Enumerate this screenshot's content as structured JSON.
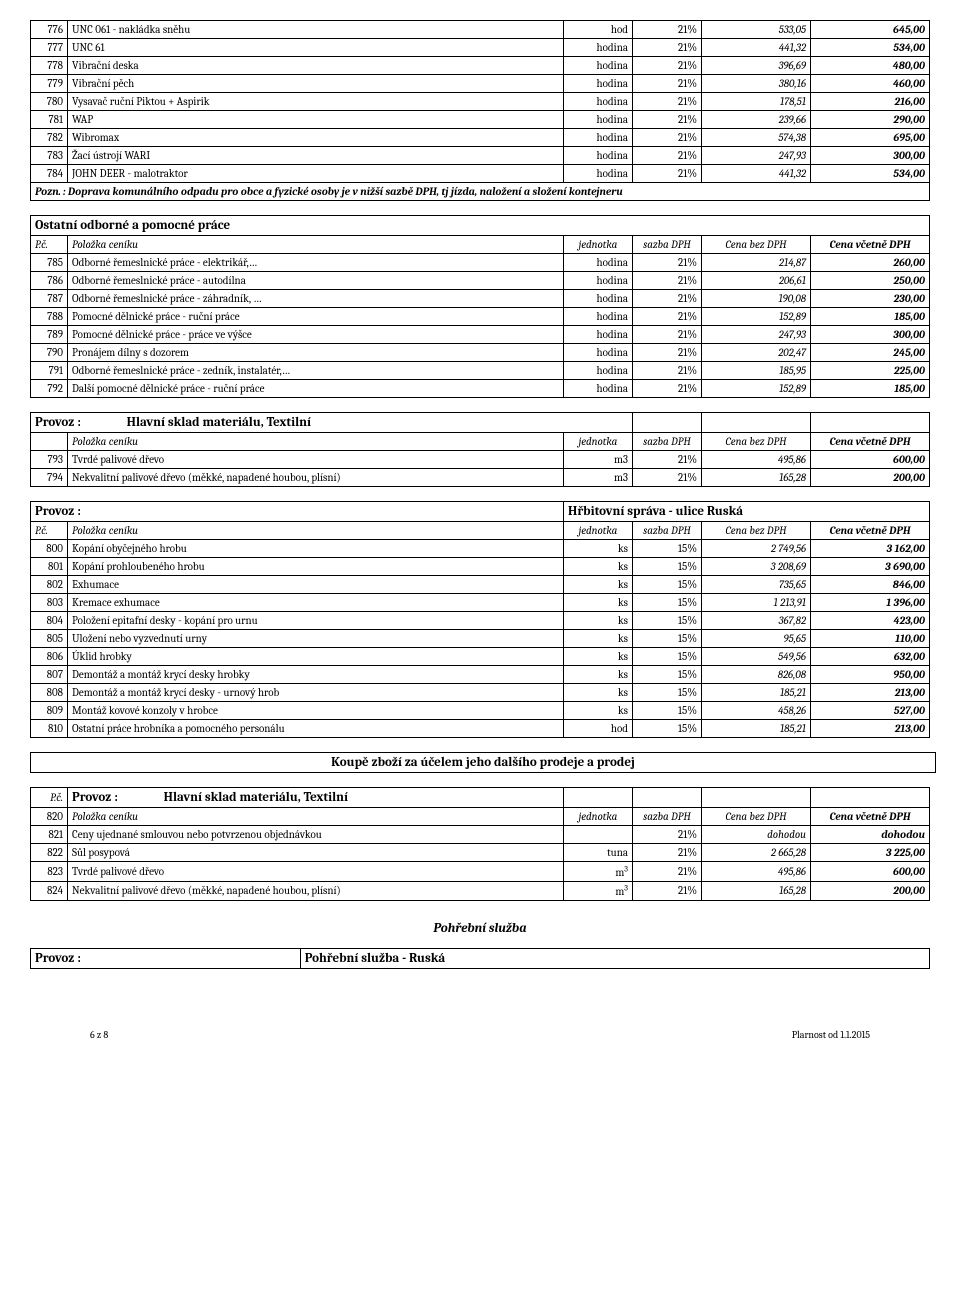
{
  "table1": {
    "rows": [
      {
        "n": "776",
        "desc": "UNC 061 - nakládka sněhu",
        "unit": "hod",
        "vat": "21%",
        "ex": "533,05",
        "inc": "645,00"
      },
      {
        "n": "777",
        "desc": "UNC 61",
        "unit": "hodina",
        "vat": "21%",
        "ex": "441,32",
        "inc": "534,00"
      },
      {
        "n": "778",
        "desc": "Vibrační deska",
        "unit": "hodina",
        "vat": "21%",
        "ex": "396,69",
        "inc": "480,00"
      },
      {
        "n": "779",
        "desc": "Vibrační pěch",
        "unit": "hodina",
        "vat": "21%",
        "ex": "380,16",
        "inc": "460,00"
      },
      {
        "n": "780",
        "desc": "Vysavač ruční Piktou + Aspirik",
        "unit": "hodina",
        "vat": "21%",
        "ex": "178,51",
        "inc": "216,00"
      },
      {
        "n": "781",
        "desc": "WAP",
        "unit": "hodina",
        "vat": "21%",
        "ex": "239,66",
        "inc": "290,00"
      },
      {
        "n": "782",
        "desc": "Wibromax",
        "unit": "hodina",
        "vat": "21%",
        "ex": "574,38",
        "inc": "695,00"
      },
      {
        "n": "783",
        "desc": "Žací ústrojí WARI",
        "unit": "hodina",
        "vat": "21%",
        "ex": "247,93",
        "inc": "300,00"
      },
      {
        "n": "784",
        "desc": "JOHN DEER - malotraktor",
        "unit": "hodina",
        "vat": "21%",
        "ex": "441,32",
        "inc": "534,00"
      }
    ],
    "note": "Pozn. : Doprava komunálního odpadu pro obce a fyzické osoby je v nižší sazbě DPH, tj jízda, naložení a složení kontejneru"
  },
  "table2": {
    "title": "Ostatní odborné a pomocné práce",
    "header": {
      "pc": "P.č.",
      "item": "Položka ceníku",
      "unit": "jednotka",
      "vat": "sazba DPH",
      "ex": "Cena bez DPH",
      "inc": "Cena včetně DPH"
    },
    "rows": [
      {
        "n": "785",
        "desc": "Odborné řemeslnické práce -  elektrikář,…",
        "unit": "hodina",
        "vat": "21%",
        "ex": "214,87",
        "inc": "260,00"
      },
      {
        "n": "786",
        "desc": "Odborné řemeslnické práce - autodílna",
        "unit": "hodina",
        "vat": "21%",
        "ex": "206,61",
        "inc": "250,00"
      },
      {
        "n": "787",
        "desc": "Odborné řemeslnické práce - záhradník, …",
        "unit": "hodina",
        "vat": "21%",
        "ex": "190,08",
        "inc": "230,00"
      },
      {
        "n": "788",
        "desc": "Pomocné dělnické práce - ruční práce",
        "unit": "hodina",
        "vat": "21%",
        "ex": "152,89",
        "inc": "185,00"
      },
      {
        "n": "789",
        "desc": "Pomocné dělnické práce - práce ve výšce",
        "unit": "hodina",
        "vat": "21%",
        "ex": "247,93",
        "inc": "300,00"
      },
      {
        "n": "790",
        "desc": "Pronájem dílny s dozorem",
        "unit": "hodina",
        "vat": "21%",
        "ex": "202,47",
        "inc": "245,00"
      },
      {
        "n": "791",
        "desc": "Odborné řemeslnické práce -  zedník, instalatér,…",
        "unit": "hodina",
        "vat": "21%",
        "ex": "185,95",
        "inc": "225,00"
      },
      {
        "n": "792",
        "desc": "Další pomocné dělnické práce - ruční práce",
        "unit": "hodina",
        "vat": "21%",
        "ex": "152,89",
        "inc": "185,00"
      }
    ]
  },
  "table3": {
    "provoz_label": "Provoz :",
    "provoz_value": "Hlavní sklad  materiálu, Textilní",
    "header": {
      "item": "Položka ceníku",
      "unit": "jednotka",
      "vat": "sazba DPH",
      "ex": "Cena bez DPH",
      "inc": "Cena včetně DPH"
    },
    "rows": [
      {
        "n": "793",
        "desc": "Tvrdé palivové dřevo",
        "unit": "m3",
        "vat": "21%",
        "ex": "495,86",
        "inc": "600,00"
      },
      {
        "n": "794",
        "desc": "Nekvalitní palivové dřevo (měkké, napadené houbou, plísní)",
        "unit": "m3",
        "vat": "21%",
        "ex": "165,28",
        "inc": "200,00"
      }
    ]
  },
  "table4": {
    "provoz_label": "Provoz :",
    "provoz_value": "Hřbitovní správa  -  ulice Ruská",
    "header": {
      "pc": "P.č.",
      "item": "Položka ceníku",
      "unit": "jednotka",
      "vat": "sazba DPH",
      "ex": "Cena bez DPH",
      "inc": "Cena včetně DPH"
    },
    "rows": [
      {
        "n": "800",
        "desc": "Kopání obyčejného hrobu",
        "unit": "ks",
        "vat": "15%",
        "ex": "2 749,56",
        "inc": "3 162,00"
      },
      {
        "n": "801",
        "desc": "Kopání prohloubeného hrobu",
        "unit": "ks",
        "vat": "15%",
        "ex": "3 208,69",
        "inc": "3 690,00"
      },
      {
        "n": "802",
        "desc": "Exhumace",
        "unit": "ks",
        "vat": "15%",
        "ex": "735,65",
        "inc": "846,00"
      },
      {
        "n": "803",
        "desc": "Kremace exhumace",
        "unit": "ks",
        "vat": "15%",
        "ex": "1 213,91",
        "inc": "1 396,00"
      },
      {
        "n": "804",
        "desc": "Položení epitafní desky - kopání pro urnu",
        "unit": "ks",
        "vat": "15%",
        "ex": "367,82",
        "inc": "423,00"
      },
      {
        "n": "805",
        "desc": "Uložení nebo vyzvednutí urny",
        "unit": "ks",
        "vat": "15%",
        "ex": "95,65",
        "inc": "110,00"
      },
      {
        "n": "806",
        "desc": "Úklid hrobky",
        "unit": "ks",
        "vat": "15%",
        "ex": "549,56",
        "inc": "632,00"
      },
      {
        "n": "807",
        "desc": "Demontáž a montáž krycí desky hrobky",
        "unit": "ks",
        "vat": "15%",
        "ex": "826,08",
        "inc": "950,00"
      },
      {
        "n": "808",
        "desc": "Demontáž a montáž krycí desky  - urnový hrob",
        "unit": "ks",
        "vat": "15%",
        "ex": "185,21",
        "inc": "213,00"
      },
      {
        "n": "809",
        "desc": "Montáž kovové konzoly v hrobce",
        "unit": "ks",
        "vat": "15%",
        "ex": "458,26",
        "inc": "527,00"
      },
      {
        "n": "810",
        "desc": "Ostatní práce hrobníka a pomocného personálu",
        "unit": "hod",
        "vat": "15%",
        "ex": "185,21",
        "inc": "213,00"
      }
    ]
  },
  "banner": "Koupě zboží za účelem jeho dalšího prodeje a prodej",
  "table5": {
    "pc": "P.č.",
    "provoz_label": "Provoz :",
    "provoz_value": "Hlavní sklad  materiálu, Textilní",
    "header": {
      "n": "820",
      "item": "Položka ceníku",
      "unit": "jednotka",
      "vat": "sazba DPH",
      "ex": "Cena bez DPH",
      "inc": "Cena včetně DPH"
    },
    "rows": [
      {
        "n": "821",
        "desc": "Ceny ujednané smlouvou nebo potvrzenou objednávkou",
        "unit": "",
        "vat": "21%",
        "ex": "dohodou",
        "inc": "dohodou"
      },
      {
        "n": "822",
        "desc": "Sůl posypová",
        "unit": "tuna",
        "vat": "21%",
        "ex": "2 665,28",
        "inc": "3 225,00"
      },
      {
        "n": "823",
        "desc": "Tvrdé palivové dřevo",
        "unit": "m³",
        "vat": "21%",
        "ex": "495,86",
        "inc": "600,00"
      },
      {
        "n": "824",
        "desc": "Nekvalitní palivové dřevo (měkké, napadené houbou, plísní)",
        "unit": "m³",
        "vat": "21%",
        "ex": "165,28",
        "inc": "200,00"
      }
    ]
  },
  "pohrebni_title": "Pohřební služba",
  "table6": {
    "provoz_label": "Provoz :",
    "provoz_value": "Pohřební služba - Ruská"
  },
  "footer": {
    "page": "6 z 8",
    "date": "Plarnost od 1.1.2015"
  }
}
